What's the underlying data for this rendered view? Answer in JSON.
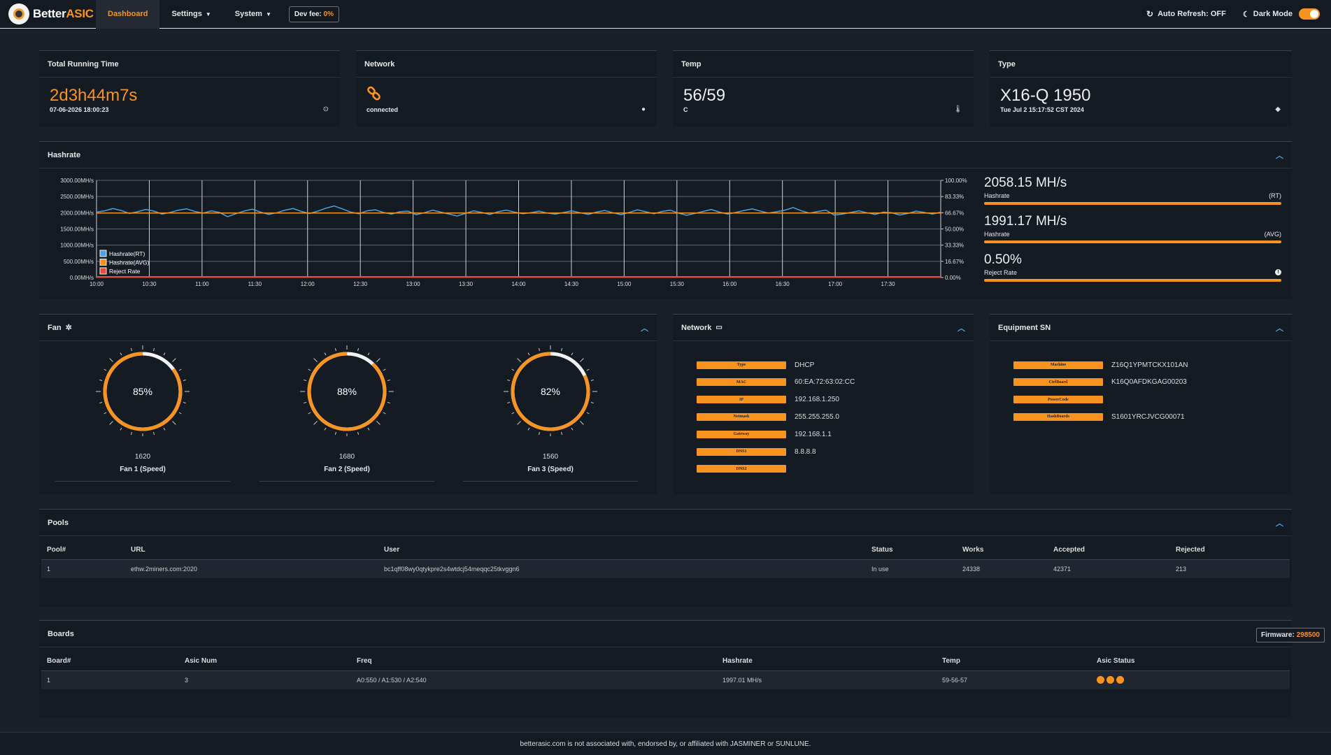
{
  "nav": {
    "brand_a": "Better",
    "brand_b": "ASIC",
    "dashboard": "Dashboard",
    "settings": "Settings",
    "system": "System",
    "devfee_label": "Dev fee:",
    "devfee_value": "0%",
    "auto_refresh": "Auto Refresh: OFF",
    "dark_mode": "Dark Mode",
    "dark_mode_on": true
  },
  "summary": {
    "running": {
      "title": "Total Running Time",
      "value": "2d3h44m7s",
      "sub": "07-06-2026 18:00:23",
      "icon": "clock-icon"
    },
    "network": {
      "title": "Network",
      "value_icon": "link-icon",
      "sub": "connected",
      "icon": "globe-icon"
    },
    "temp": {
      "title": "Temp",
      "value": "56/59",
      "sub": "C",
      "icon": "thermometer-icon"
    },
    "type": {
      "title": "Type",
      "value": "X16-Q 1950",
      "sub": "Tue Jul 2 15:17:52 CST 2024",
      "icon": "tag-icon"
    }
  },
  "hashrate": {
    "title": "Hashrate",
    "rt_value": "2058.15 MH/s",
    "rt_label": "Hashrate",
    "rt_tag": "(RT)",
    "avg_value": "1991.17 MH/s",
    "avg_label": "Hashrate",
    "avg_tag": "(AVG)",
    "reject_value": "0.50%",
    "reject_label": "Reject Rate"
  },
  "chart_data": {
    "type": "line",
    "x_ticks": [
      "10:00",
      "10:30",
      "11:00",
      "11:30",
      "12:00",
      "12:30",
      "13:00",
      "13:30",
      "14:00",
      "14:30",
      "15:00",
      "15:30",
      "16:00",
      "16:30",
      "17:00",
      "17:30"
    ],
    "y_left_ticks": [
      "3000.00MH/s",
      "2500.00MH/s",
      "2000.00MH/s",
      "1500.00MH/s",
      "1000.00MH/s",
      "500.00MH/s",
      "0.00MH/s"
    ],
    "y_right_ticks": [
      "100.00%",
      "83.33%",
      "66.67%",
      "50.00%",
      "33.33%",
      "16.67%",
      "0.00%"
    ],
    "ylim": [
      0,
      3000
    ],
    "xlim_minutes": [
      0,
      480
    ],
    "legend_placement": "bottom-left",
    "series": [
      {
        "name": "Hashrate(RT)",
        "color": "#4aa3df",
        "values": [
          2020,
          2060,
          2130,
          2070,
          1980,
          2030,
          2100,
          2050,
          1960,
          2010,
          2080,
          2120,
          2040,
          1990,
          2060,
          2010,
          1880,
          1970,
          2050,
          2110,
          2020,
          1950,
          2000,
          2080,
          2130,
          2040,
          1980,
          2050,
          2140,
          2210,
          2120,
          2020,
          1970,
          2060,
          2090,
          2010,
          1960,
          2030,
          2050,
          1940,
          2000,
          2080,
          2020,
          1960,
          1900,
          1980,
          2060,
          2010,
          1950,
          2030,
          2080,
          2020,
          1970,
          2000,
          2050,
          1990,
          1960,
          2010,
          2060,
          2000,
          1950,
          2020,
          2070,
          2000,
          1940,
          2010,
          2090,
          2030,
          1970,
          2040,
          2080,
          1990,
          1920,
          1980,
          2040,
          2100,
          2020,
          1960,
          2010,
          2070,
          2120,
          2050,
          1990,
          2030,
          2080,
          2160,
          2060,
          1990,
          2040,
          2080,
          1930,
          1960,
          2010,
          2060,
          2000,
          1950,
          2020,
          2000,
          1930,
          1980,
          2050,
          2010,
          1960,
          2020
        ]
      },
      {
        "name": "Hashrate(AVG)",
        "color": "#f7931e",
        "values": [
          1991,
          1991
        ]
      },
      {
        "name": "Reject Rate",
        "color": "#e74c3c",
        "values": [
          0,
          0
        ]
      }
    ]
  },
  "fan": {
    "title": "Fan",
    "fans": [
      {
        "percent": 85,
        "label": "85%",
        "rpm": "1620",
        "name": "Fan 1 (Speed)"
      },
      {
        "percent": 88,
        "label": "88%",
        "rpm": "1680",
        "name": "Fan 2 (Speed)"
      },
      {
        "percent": 82,
        "label": "82%",
        "rpm": "1560",
        "name": "Fan 3 (Speed)"
      }
    ]
  },
  "network_info": {
    "title": "Network",
    "rows": [
      {
        "k": "Type",
        "v": "DHCP"
      },
      {
        "k": "MAC",
        "v": "60:EA:72:63:02:CC"
      },
      {
        "k": "IP",
        "v": "192.168.1.250"
      },
      {
        "k": "Netmask",
        "v": "255.255.255.0"
      },
      {
        "k": "Gateway",
        "v": "192.168.1.1"
      },
      {
        "k": "DNS1",
        "v": "8.8.8.8"
      },
      {
        "k": "DNS2",
        "v": ""
      }
    ]
  },
  "equipment": {
    "title": "Equipment SN",
    "rows": [
      {
        "k": "Machine",
        "v": "Z16Q1YPMTCKX101AN"
      },
      {
        "k": "CtrlBoard",
        "v": "K16Q0AFDKGAG00203"
      },
      {
        "k": "PowerCode",
        "v": ""
      },
      {
        "k": "HashBoards",
        "v": "S1601YRCJVCG00071"
      }
    ]
  },
  "pools": {
    "title": "Pools",
    "headers": [
      "Pool#",
      "URL",
      "User",
      "Status",
      "Works",
      "Accepted",
      "Rejected"
    ],
    "rows": [
      [
        "1",
        "ethw.2miners.com:2020",
        "bc1qff08wy0qtykpre2s4wtdcj54meqqc25tkvggn6",
        "In use",
        "24338",
        "42371",
        "213"
      ]
    ]
  },
  "boards": {
    "title": "Boards",
    "firmware_label": "Firmware:",
    "firmware_value": "298500",
    "headers": [
      "Board#",
      "Asic Num",
      "Freq",
      "Hashrate",
      "Temp",
      "Asic Status"
    ],
    "rows": [
      [
        "1",
        "3",
        "A0:550 / A1:530 / A2:540",
        "1997.01 MH/s",
        "59-56-57"
      ]
    ],
    "asic_status_dots": 3
  },
  "footer": "betterasic.com is not associated with, endorsed by, or affiliated with JASMINER or SUNLUNE."
}
